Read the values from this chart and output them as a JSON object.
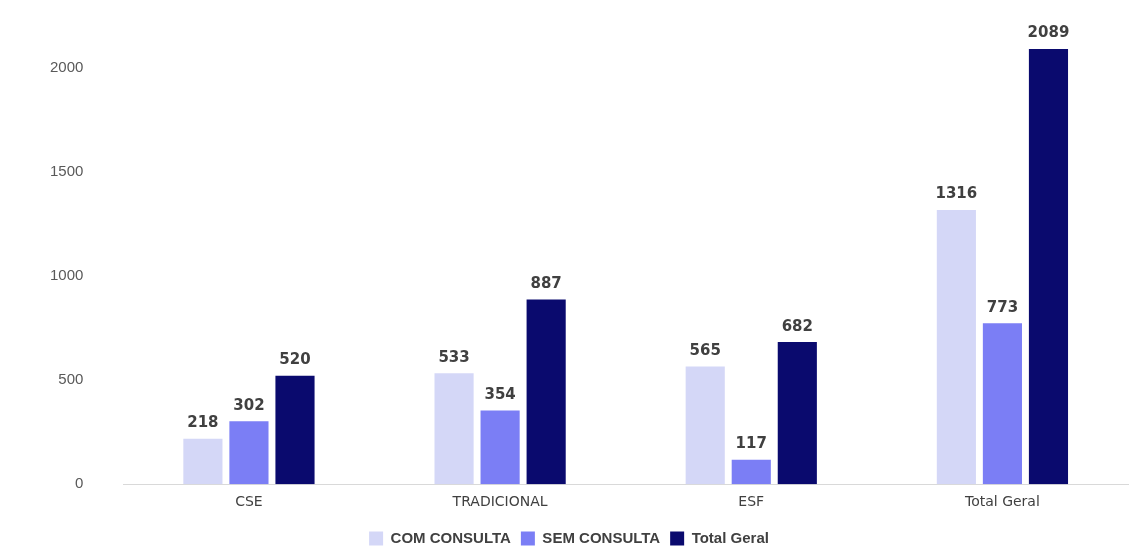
{
  "chart_data": {
    "type": "bar",
    "categories": [
      "CSE",
      "TRADICIONAL",
      "ESF",
      "Total Geral"
    ],
    "series": [
      {
        "name": "COM CONSULTA",
        "color": "#d4d7f7",
        "values": [
          218,
          533,
          565,
          1316
        ]
      },
      {
        "name": "SEM CONSULTA",
        "color": "#7b7ef5",
        "values": [
          302,
          354,
          117,
          773
        ]
      },
      {
        "name": "Total Geral",
        "color": "#0a0a6e",
        "values": [
          520,
          887,
          682,
          2089
        ]
      }
    ],
    "ylim": [
      0,
      2089
    ],
    "yticks": [
      0,
      500,
      1000,
      1500,
      2000
    ],
    "grid": false,
    "legend": "bottom",
    "data_labels": true
  }
}
